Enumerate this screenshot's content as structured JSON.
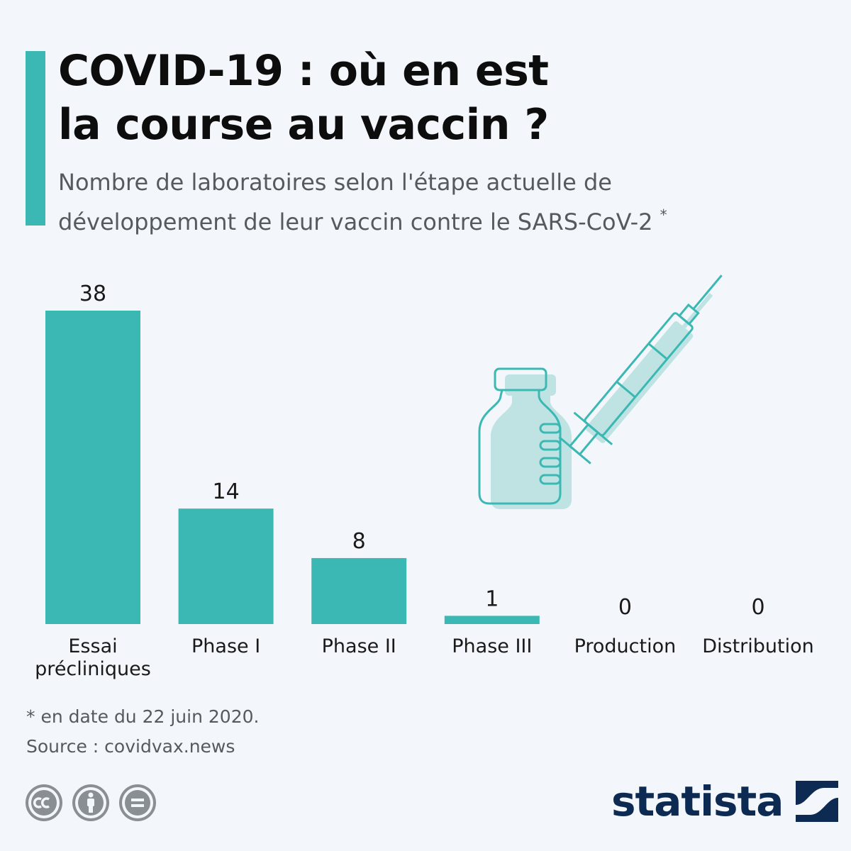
{
  "title": {
    "line1": "COVID-19 : où en est",
    "line2": "la course au vaccin ?"
  },
  "subtitle": {
    "line1": "Nombre de laboratoires selon l'étape actuelle de",
    "line2": "développement de leur vaccin contre le SARS-CoV-2",
    "marker": "*"
  },
  "chart_data": {
    "type": "bar",
    "categories": [
      [
        "Essai",
        "précliniques"
      ],
      [
        "Phase I"
      ],
      [
        "Phase II"
      ],
      [
        "Phase III"
      ],
      [
        "Production"
      ],
      [
        "Distribution"
      ]
    ],
    "values": [
      38,
      14,
      8,
      1,
      0,
      0
    ],
    "ylim": [
      0,
      38
    ],
    "grid": false,
    "legend": "none",
    "color": "#3bb8b4"
  },
  "illustration": {
    "icons": [
      "vaccine-vial-icon",
      "syringe-icon"
    ],
    "stroke_color": "#3bb8b4",
    "fill_color": "#bfe3e3"
  },
  "footnote": {
    "date_note": "* en date du 22 juin 2020.",
    "source": "Source : covidvax.news"
  },
  "license_icons": [
    "cc-icon",
    "attribution-icon",
    "no-derivatives-icon"
  ],
  "brand": {
    "name": "statista",
    "color": "#0d2b52"
  },
  "colors": {
    "background": "#f3f7fb",
    "accent": "#3bb8b4",
    "text_dark": "#0d0d0d",
    "text_muted": "#555a5e"
  }
}
